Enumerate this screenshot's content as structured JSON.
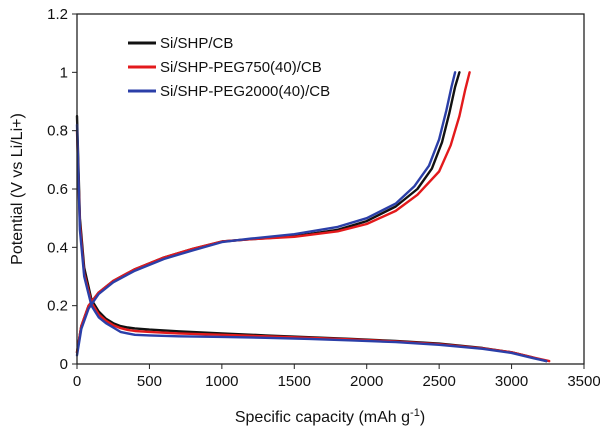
{
  "chart_data": {
    "type": "line",
    "title": "",
    "xlabel": "Specific capacity (mAh g",
    "xlabel_sup": "-1",
    "xlabel_suffix": ")",
    "ylabel": "Potential (V vs Li/Li+)",
    "xlim": [
      0,
      3500
    ],
    "ylim": [
      0,
      1.2
    ],
    "x_ticks": [
      0,
      500,
      1000,
      1500,
      2000,
      2500,
      3000,
      3500
    ],
    "x_tick_labels": [
      "0",
      "500",
      "1000",
      "1500",
      "2000",
      "2500",
      "3000",
      "3500"
    ],
    "y_ticks": [
      0,
      0.2,
      0.4,
      0.6,
      0.8,
      1.0,
      1.2
    ],
    "y_tick_labels": [
      "0",
      "0.2",
      "0.4",
      "0.6",
      "0.8",
      "1",
      "1.2"
    ],
    "grid": false,
    "legend_position": "top-left",
    "series": [
      {
        "name": "Si/SHP/CB",
        "color": "#111111",
        "segments": [
          {
            "label": "discharge",
            "x": [
              0,
              20,
              50,
              100,
              150,
              200,
              250,
              300,
              350,
              400,
              500,
              700,
              1000,
              1300,
              1600,
              1900,
              2200,
              2500,
              2800,
              3000,
              3150,
              3240
            ],
            "y": [
              0.85,
              0.5,
              0.33,
              0.22,
              0.18,
              0.155,
              0.14,
              0.13,
              0.125,
              0.122,
              0.118,
              0.112,
              0.105,
              0.098,
              0.092,
              0.086,
              0.079,
              0.07,
              0.055,
              0.04,
              0.022,
              0.01
            ]
          },
          {
            "label": "charge",
            "x": [
              0,
              30,
              80,
              150,
              250,
              400,
              600,
              800,
              1000,
              1200,
              1500,
              1800,
              2000,
              2200,
              2350,
              2450,
              2520,
              2570,
              2610,
              2640
            ],
            "y": [
              0.04,
              0.13,
              0.2,
              0.245,
              0.285,
              0.325,
              0.365,
              0.395,
              0.42,
              0.428,
              0.438,
              0.46,
              0.49,
              0.54,
              0.6,
              0.67,
              0.76,
              0.86,
              0.95,
              1.0
            ]
          }
        ]
      },
      {
        "name": "Si/SHP-PEG750(40)/CB",
        "color": "#e31a1c",
        "segments": [
          {
            "label": "discharge",
            "x": [
              0,
              20,
              50,
              100,
              150,
              200,
              250,
              300,
              350,
              400,
              500,
              700,
              1000,
              1300,
              1600,
              1900,
              2200,
              2500,
              2800,
              3000,
              3150,
              3260
            ],
            "y": [
              0.8,
              0.48,
              0.31,
              0.21,
              0.17,
              0.148,
              0.133,
              0.123,
              0.117,
              0.113,
              0.11,
              0.105,
              0.1,
              0.095,
              0.09,
              0.084,
              0.077,
              0.068,
              0.054,
              0.04,
              0.022,
              0.01
            ]
          },
          {
            "label": "charge",
            "x": [
              0,
              30,
              80,
              150,
              250,
              400,
              600,
              800,
              1000,
              1200,
              1500,
              1800,
              2000,
              2200,
              2350,
              2500,
              2580,
              2640,
              2680,
              2710
            ],
            "y": [
              0.04,
              0.13,
              0.2,
              0.245,
              0.285,
              0.325,
              0.365,
              0.395,
              0.42,
              0.428,
              0.436,
              0.455,
              0.48,
              0.525,
              0.58,
              0.66,
              0.75,
              0.85,
              0.94,
              1.0
            ]
          }
        ]
      },
      {
        "name": "Si/SHP-PEG2000(40)/CB",
        "color": "#2b3fa8",
        "segments": [
          {
            "label": "discharge",
            "x": [
              0,
              20,
              50,
              100,
              150,
              200,
              250,
              300,
              350,
              400,
              500,
              700,
              1000,
              1300,
              1600,
              1900,
              2200,
              2500,
              2800,
              3000,
              3150,
              3240
            ],
            "y": [
              0.82,
              0.46,
              0.3,
              0.2,
              0.16,
              0.14,
              0.125,
              0.11,
              0.105,
              0.1,
              0.098,
              0.095,
              0.093,
              0.09,
              0.086,
              0.081,
              0.075,
              0.066,
              0.052,
              0.038,
              0.02,
              0.01
            ]
          },
          {
            "label": "charge",
            "x": [
              0,
              30,
              80,
              150,
              250,
              400,
              600,
              800,
              1000,
              1200,
              1500,
              1800,
              2000,
              2200,
              2330,
              2430,
              2500,
              2550,
              2585,
              2610
            ],
            "y": [
              0.03,
              0.12,
              0.19,
              0.24,
              0.28,
              0.32,
              0.36,
              0.39,
              0.418,
              0.43,
              0.445,
              0.47,
              0.5,
              0.55,
              0.61,
              0.68,
              0.77,
              0.87,
              0.95,
              1.0
            ]
          }
        ]
      }
    ]
  }
}
